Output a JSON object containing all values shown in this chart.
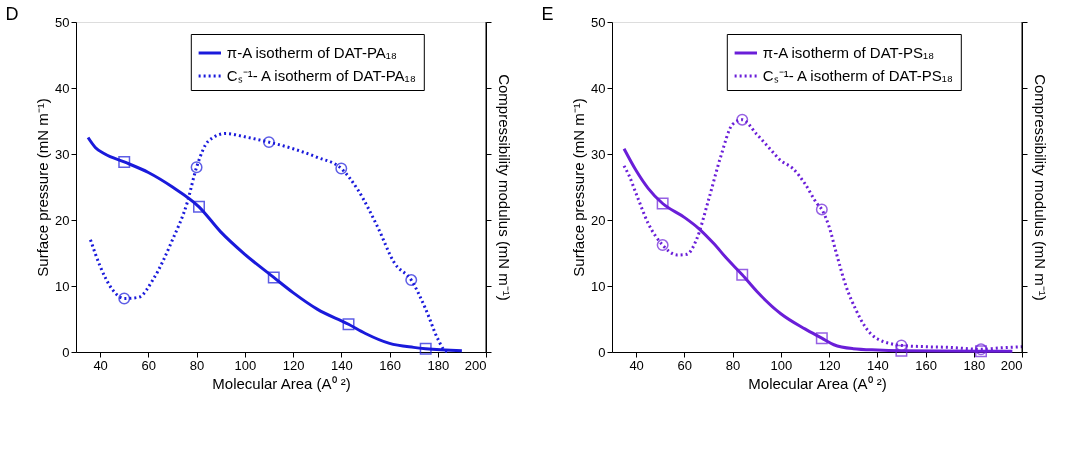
{
  "chart_data": [
    {
      "type": "line",
      "title": "D",
      "xlabel": "Molecular Area (A⁰ ²)",
      "ylabel": "Surface pressure (mN m⁻¹)",
      "y2label": "Compressibility modulus (mN m⁻¹)",
      "xlim": [
        30,
        200
      ],
      "xticks": [
        40,
        60,
        80,
        100,
        120,
        140,
        160,
        180,
        200
      ],
      "ylim": [
        0,
        50
      ],
      "yticks": [
        0,
        10,
        20,
        30,
        40,
        50
      ],
      "grid": false,
      "legend": "top",
      "series": [
        {
          "name": "π-A isotherm of DAT-PA₁₈",
          "color": "#1a1adb",
          "line_style": "solid",
          "x": [
            35,
            38,
            42,
            50,
            60,
            70,
            81,
            90,
            100,
            112,
            120,
            130,
            143,
            150,
            160,
            170,
            175,
            190
          ],
          "values": [
            32.5,
            31,
            30,
            28.8,
            27.2,
            25,
            22,
            18.2,
            14.8,
            11.3,
            9,
            6.5,
            4.2,
            2.8,
            1.3,
            0.7,
            0.5,
            0.2
          ]
        },
        {
          "name": "Cₛ⁻¹- A isotherm of DAT-PA₁₈",
          "color": "#1a1adb",
          "line_style": "dotted",
          "x": [
            36,
            40,
            45,
            50,
            56,
            62,
            70,
            76,
            80,
            85,
            92,
            100,
            110,
            120,
            130,
            140,
            147,
            155,
            162,
            169,
            175,
            180,
            183,
            185
          ],
          "values": [
            17,
            13,
            9.5,
            8.1,
            8.3,
            11,
            17,
            22.5,
            28,
            32,
            33.1,
            32.6,
            31.8,
            30.8,
            29.5,
            27.8,
            24.5,
            19,
            13.5,
            10.9,
            6.5,
            2,
            0.2,
            0
          ]
        },
        {
          "type": "scatter",
          "marker": "square",
          "color": "#1a1adb",
          "x": [
            50,
            81,
            112,
            143,
            175
          ],
          "values": [
            28.8,
            22,
            11.3,
            4.2,
            0.5
          ]
        },
        {
          "type": "scatter",
          "marker": "circle",
          "color": "#1a1adb",
          "x": [
            50,
            80,
            110,
            140,
            169
          ],
          "values": [
            8.1,
            28,
            31.8,
            27.8,
            10.9
          ]
        }
      ]
    },
    {
      "type": "line",
      "title": "E",
      "xlabel": "Molecular Area (A⁰ ²)",
      "ylabel": "Surface pressure (mN m⁻¹)",
      "y2label": "Compressibility modulus (mN m⁻¹)",
      "xlim": [
        30,
        200
      ],
      "xticks": [
        40,
        60,
        80,
        100,
        120,
        140,
        160,
        180,
        200
      ],
      "ylim": [
        0,
        50
      ],
      "yticks": [
        0,
        10,
        20,
        30,
        40,
        50
      ],
      "grid": false,
      "legend": "top",
      "series": [
        {
          "name": "π-A isotherm of DAT-PS₁₈",
          "color": "#6a1ed8",
          "line_style": "solid",
          "x": [
            35,
            40,
            45,
            51,
            60,
            66,
            72,
            78,
            84,
            90,
            100,
            110,
            117,
            122,
            130,
            140,
            150,
            183,
            196
          ],
          "values": [
            30.8,
            27.5,
            24.8,
            22.5,
            20.4,
            18.7,
            16.5,
            14,
            11.7,
            9.2,
            5.8,
            3.5,
            2.1,
            1.1,
            0.5,
            0.3,
            0.2,
            0.1,
            0.1
          ]
        },
        {
          "name": "Cₛ⁻¹- A isotherm of DAT-PS₁₈",
          "color": "#6a1ed8",
          "line_style": "dotted",
          "x": [
            35,
            37,
            40,
            45,
            51,
            57,
            61,
            65,
            70,
            75,
            80,
            84,
            90,
            95,
            100,
            105,
            110,
            115,
            117,
            120,
            123,
            127,
            131,
            135,
            140,
            150,
            160,
            170,
            183,
            190,
            200
          ],
          "values": [
            28.2,
            26.8,
            24,
            19.5,
            16.2,
            14.7,
            14.8,
            17,
            23,
            29.5,
            34.5,
            35.2,
            33,
            31,
            29,
            27.8,
            25.5,
            22.5,
            21.6,
            19,
            15,
            10,
            6.5,
            3.8,
            2,
            1,
            0.8,
            0.7,
            0.4,
            0.6,
            0.8
          ]
        },
        {
          "type": "scatter",
          "marker": "square",
          "color": "#6a1ed8",
          "x": [
            51,
            84,
            117,
            150,
            183
          ],
          "values": [
            22.5,
            11.7,
            2.1,
            0.2,
            0.1
          ]
        },
        {
          "type": "scatter",
          "marker": "circle",
          "color": "#6a1ed8",
          "x": [
            51,
            84,
            117,
            150,
            183
          ],
          "values": [
            16.2,
            35.2,
            21.6,
            1,
            0.4
          ]
        }
      ]
    }
  ]
}
